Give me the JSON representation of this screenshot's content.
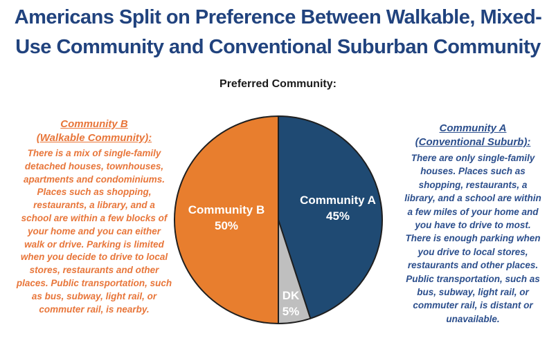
{
  "page": {
    "title": "Americans Split on Preference Between Walkable, Mixed-\nUse Community and Conventional Suburban Community"
  },
  "left_panel": {
    "heading": "Community B\n(Walkable Community):",
    "body": "There is a mix of single-family\ndetached houses, townhouses,\napartments and condominiums.\nPlaces such as shopping,\nrestaurants, a library, and a\nschool are within a few blocks of\nyour home and you can either\nwalk or drive. Parking is limited\nwhen you decide to drive to local\nstores, restaurants and other\nplaces. Public transportation, such\nas bus, subway, light rail, or\ncommuter rail, is nearby."
  },
  "right_panel": {
    "heading": "Community A\n(Conventional Suburb):",
    "body": "There are only single-family\nhouses. Places such as\nshopping, restaurants, a\nlibrary, and a school are within\na few miles of your home and\nyou have to drive to most.\nThere is enough parking when\nyou drive to local stores,\nrestaurants and other places.\nPublic transportation, such as\nbus, subway, light rail, or\ncommuter rail, is distant or\nunavailable."
  },
  "chart_data": {
    "type": "pie",
    "title": "Preferred Community:",
    "direction": "clockwise_from_top",
    "start_angle_deg": 0,
    "legend_position": "none",
    "slices": [
      {
        "label": "Community A",
        "value": 45,
        "display": "45%",
        "color": "#1F4A73"
      },
      {
        "label": "DK",
        "value": 5,
        "display": "5%",
        "color": "#BFBFBF"
      },
      {
        "label": "Community B",
        "value": 50,
        "display": "50%",
        "color": "#E87E2E"
      }
    ]
  },
  "colors": {
    "background": "#FFFFFF",
    "title_text": "#21437E",
    "chart_title_text": "#1A1A1A",
    "left_panel_text": "#E8763A",
    "right_panel_text": "#2B4E8C",
    "pie_outline": "#1F1F1F",
    "pie_label_text": "#FFFFFF"
  }
}
